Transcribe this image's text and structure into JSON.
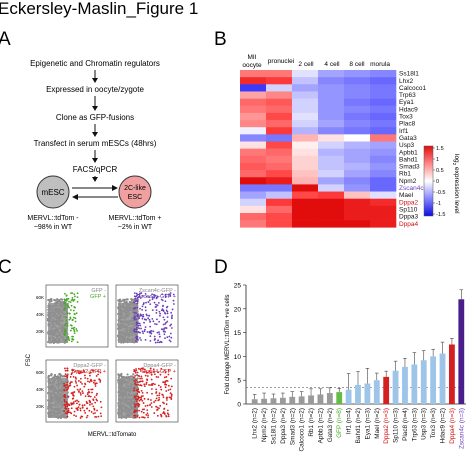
{
  "title": "Eckersley-Maslin_Figure 1",
  "panelA": {
    "label": "A",
    "steps": [
      "Epigenetic and Chromatin regulators",
      "Expressed in oocyte/zygote",
      "Clone as GFP-fusions",
      "Transfect  in serum mESCs (48hrs)",
      "FACS/qPCR"
    ],
    "mesc": "mESC",
    "like2c": "2C-like",
    "esc": "ESC",
    "mesc_note1": "MERVL::tdTom -",
    "mesc_note2": "~98% in WT",
    "like_note1": "MERVL::tdTom +",
    "like_note2": "~2% in WT"
  },
  "panelB": {
    "label": "B",
    "columns": [
      "MII oocyte",
      "pronuclei",
      "2 cell",
      "4 cell",
      "8 cell",
      "morula"
    ],
    "genes": [
      {
        "name": "Ss18l1",
        "color": "#111111"
      },
      {
        "name": "Lhx2",
        "color": "#111111"
      },
      {
        "name": "Calcoco1",
        "color": "#111111"
      },
      {
        "name": "Trp63",
        "color": "#111111"
      },
      {
        "name": "Eya1",
        "color": "#111111"
      },
      {
        "name": "Hdac9",
        "color": "#111111"
      },
      {
        "name": "Tox3",
        "color": "#111111"
      },
      {
        "name": "Plac8",
        "color": "#111111"
      },
      {
        "name": "Irf1",
        "color": "#111111"
      },
      {
        "name": "Gata3",
        "color": "#111111"
      },
      {
        "name": "Usp3",
        "color": "#111111"
      },
      {
        "name": "Apbb1",
        "color": "#111111"
      },
      {
        "name": "Bahd1",
        "color": "#111111"
      },
      {
        "name": "Smad3",
        "color": "#111111"
      },
      {
        "name": "Rb1",
        "color": "#111111"
      },
      {
        "name": "Npm2",
        "color": "#111111"
      },
      {
        "name": "Zscan4c",
        "color": "#6a3db8"
      },
      {
        "name": "Mael",
        "color": "#111111"
      },
      {
        "name": "Dppa2",
        "color": "#cc1111"
      },
      {
        "name": "Sp110",
        "color": "#111111"
      },
      {
        "name": "Dppa3",
        "color": "#111111"
      },
      {
        "name": "Dppa4",
        "color": "#cc1111"
      }
    ],
    "heatmap": [
      [
        0.9,
        0.9,
        -0.2,
        -0.6,
        -0.7,
        -0.8
      ],
      [
        1.4,
        1.3,
        -0.4,
        -0.8,
        -0.9,
        -1.0
      ],
      [
        -1.3,
        -0.3,
        -0.6,
        -0.7,
        -0.8,
        -0.9
      ],
      [
        0.6,
        0.8,
        -0.4,
        -0.7,
        -0.8,
        -0.9
      ],
      [
        1.0,
        1.1,
        -0.3,
        -0.7,
        -0.9,
        -1.0
      ],
      [
        0.9,
        1.0,
        -0.3,
        -0.7,
        -0.8,
        -0.9
      ],
      [
        0.7,
        1.2,
        -0.2,
        -0.7,
        -0.9,
        -1.0
      ],
      [
        0.8,
        1.0,
        -0.3,
        -0.6,
        -0.8,
        -0.9
      ],
      [
        -0.1,
        1.3,
        -0.5,
        -0.8,
        -0.9,
        -1.0
      ],
      [
        -0.8,
        -0.9,
        0.5,
        0.2,
        0.0,
        0.9
      ],
      [
        0.2,
        1.2,
        0.1,
        -0.3,
        -0.5,
        -0.6
      ],
      [
        0.9,
        1.0,
        0.2,
        -0.5,
        -0.6,
        -0.7
      ],
      [
        1.0,
        0.9,
        0.3,
        -0.4,
        -0.6,
        -0.8
      ],
      [
        1.1,
        1.0,
        0.3,
        -0.4,
        -0.5,
        -0.7
      ],
      [
        1.0,
        1.2,
        0.4,
        -0.3,
        -0.6,
        -0.8
      ],
      [
        1.6,
        1.5,
        0.5,
        -0.6,
        -0.8,
        -1.0
      ],
      [
        -0.9,
        -0.9,
        1.6,
        -0.3,
        -0.7,
        -1.0
      ],
      [
        -0.6,
        -0.4,
        1.2,
        1.3,
        0.4,
        -0.2
      ],
      [
        -0.3,
        1.3,
        1.6,
        1.6,
        1.5,
        1.4
      ],
      [
        0.2,
        1.0,
        1.6,
        1.6,
        1.5,
        1.5
      ],
      [
        1.0,
        1.2,
        1.6,
        1.6,
        1.5,
        1.5
      ],
      [
        0.9,
        1.2,
        1.6,
        1.6,
        1.6,
        1.5
      ]
    ],
    "scale_ticks": [
      "1.5",
      "1",
      "0.5",
      "0",
      "-0.5",
      "-1",
      "-1.5"
    ],
    "scale_label_main": "log",
    "scale_label_sub": "2",
    "scale_label_rest": " expression level"
  },
  "panelC": {
    "label": "C",
    "ylabel": "FSC",
    "xlabel": "MERVL::tdTomato",
    "yticks": [
      "60K",
      "40K",
      "20K"
    ],
    "plots": [
      {
        "l1": "GFP -",
        "c1": "#888888",
        "l2": "GFP +",
        "c2": "#44aa22",
        "pos": "#44aa22"
      },
      {
        "l1": "Zscan4c-GFP -",
        "c1": "#888888",
        "l2": "Zscan4c-GFP +",
        "c2": "#6a3db8",
        "pos": "#6a3db8"
      },
      {
        "l1": "Dppa2-GFP -",
        "c1": "#888888",
        "l2": "Dppa2-GFP +",
        "c2": "#d42020",
        "pos": "#d42020"
      },
      {
        "l1": "Dppa4-GFP -",
        "c1": "#888888",
        "l2": "Dppa4-GFP +",
        "c2": "#d42020",
        "pos": "#d42020"
      }
    ]
  },
  "chart_data": {
    "type": "bar",
    "label": "D",
    "ylabel": "Fold change MERVL::tdTom +ve cells",
    "ylim": [
      0,
      25
    ],
    "yticks": [
      0,
      5,
      10,
      15,
      20,
      25
    ],
    "reference_line": 3.5,
    "categories": [
      {
        "name": "Lhx2",
        "n": "(n=2)",
        "value": 1.0,
        "err": 1.0,
        "color": "#9a9a9a",
        "label_color": "#111111"
      },
      {
        "name": "Npm2",
        "n": "(n=2)",
        "value": 1.1,
        "err": 1.2,
        "color": "#9a9a9a",
        "label_color": "#111111"
      },
      {
        "name": "Ss18l1",
        "n": "(n=2)",
        "value": 1.2,
        "err": 0.9,
        "color": "#9a9a9a",
        "label_color": "#111111"
      },
      {
        "name": "Dppa3",
        "n": "(n=2)",
        "value": 1.3,
        "err": 1.0,
        "color": "#9a9a9a",
        "label_color": "#111111"
      },
      {
        "name": "Smad3",
        "n": "(n=2)",
        "value": 1.5,
        "err": 1.1,
        "color": "#9a9a9a",
        "label_color": "#111111"
      },
      {
        "name": "Calcoco1",
        "n": "(n=2)",
        "value": 1.6,
        "err": 1.0,
        "color": "#9a9a9a",
        "label_color": "#111111"
      },
      {
        "name": "Rb1",
        "n": "(n=2)",
        "value": 1.8,
        "err": 1.4,
        "color": "#9a9a9a",
        "label_color": "#111111"
      },
      {
        "name": "Apbb1",
        "n": "(n=2)",
        "value": 2.0,
        "err": 1.2,
        "color": "#9a9a9a",
        "label_color": "#111111"
      },
      {
        "name": "Gata3",
        "n": "(n=2)",
        "value": 2.3,
        "err": 1.1,
        "color": "#9a9a9a",
        "label_color": "#111111"
      },
      {
        "name": "GFP",
        "n": "(n=8)",
        "value": 2.5,
        "err": 0.8,
        "color": "#66bb44",
        "label_color": "#44aa22"
      },
      {
        "name": "Irf1",
        "n": "(n=4)",
        "value": 3.0,
        "err": 3.4,
        "color": "#9ec5e8",
        "label_color": "#111111"
      },
      {
        "name": "Bahd1",
        "n": "(n=2)",
        "value": 4.0,
        "err": 2.8,
        "color": "#9ec5e8",
        "label_color": "#111111"
      },
      {
        "name": "Eya1",
        "n": "(n=3)",
        "value": 4.3,
        "err": 3.2,
        "color": "#9ec5e8",
        "label_color": "#111111"
      },
      {
        "name": "Mael",
        "n": "(n=2)",
        "value": 5.0,
        "err": 1.5,
        "color": "#9ec5e8",
        "label_color": "#111111"
      },
      {
        "name": "Dppa2",
        "n": "(n=3)",
        "value": 5.7,
        "err": 1.2,
        "color": "#d42020",
        "label_color": "#cc1111"
      },
      {
        "name": "Sp110",
        "n": "(n=3)",
        "value": 7.0,
        "err": 2.0,
        "color": "#9ec5e8",
        "label_color": "#111111"
      },
      {
        "name": "Plac8",
        "n": "(n=4)",
        "value": 7.8,
        "err": 1.8,
        "color": "#9ec5e8",
        "label_color": "#111111"
      },
      {
        "name": "Trp63",
        "n": "(n=3)",
        "value": 8.3,
        "err": 2.5,
        "color": "#9ec5e8",
        "label_color": "#111111"
      },
      {
        "name": "Usp3",
        "n": "(n=3)",
        "value": 9.2,
        "err": 2.0,
        "color": "#9ec5e8",
        "label_color": "#111111"
      },
      {
        "name": "Tox3",
        "n": "(n=3)",
        "value": 10.0,
        "err": 1.5,
        "color": "#9ec5e8",
        "label_color": "#111111"
      },
      {
        "name": "Hdac9",
        "n": "(n=2)",
        "value": 10.6,
        "err": 2.4,
        "color": "#9ec5e8",
        "label_color": "#111111"
      },
      {
        "name": "Dppa4",
        "n": "(n=3)",
        "value": 12.5,
        "err": 1.3,
        "color": "#d42020",
        "label_color": "#cc1111"
      },
      {
        "name": "Zscan4c",
        "n": "(n=3)",
        "value": 22.0,
        "err": 2.0,
        "color": "#4a1f8c",
        "label_color": "#6a3db8"
      }
    ]
  }
}
